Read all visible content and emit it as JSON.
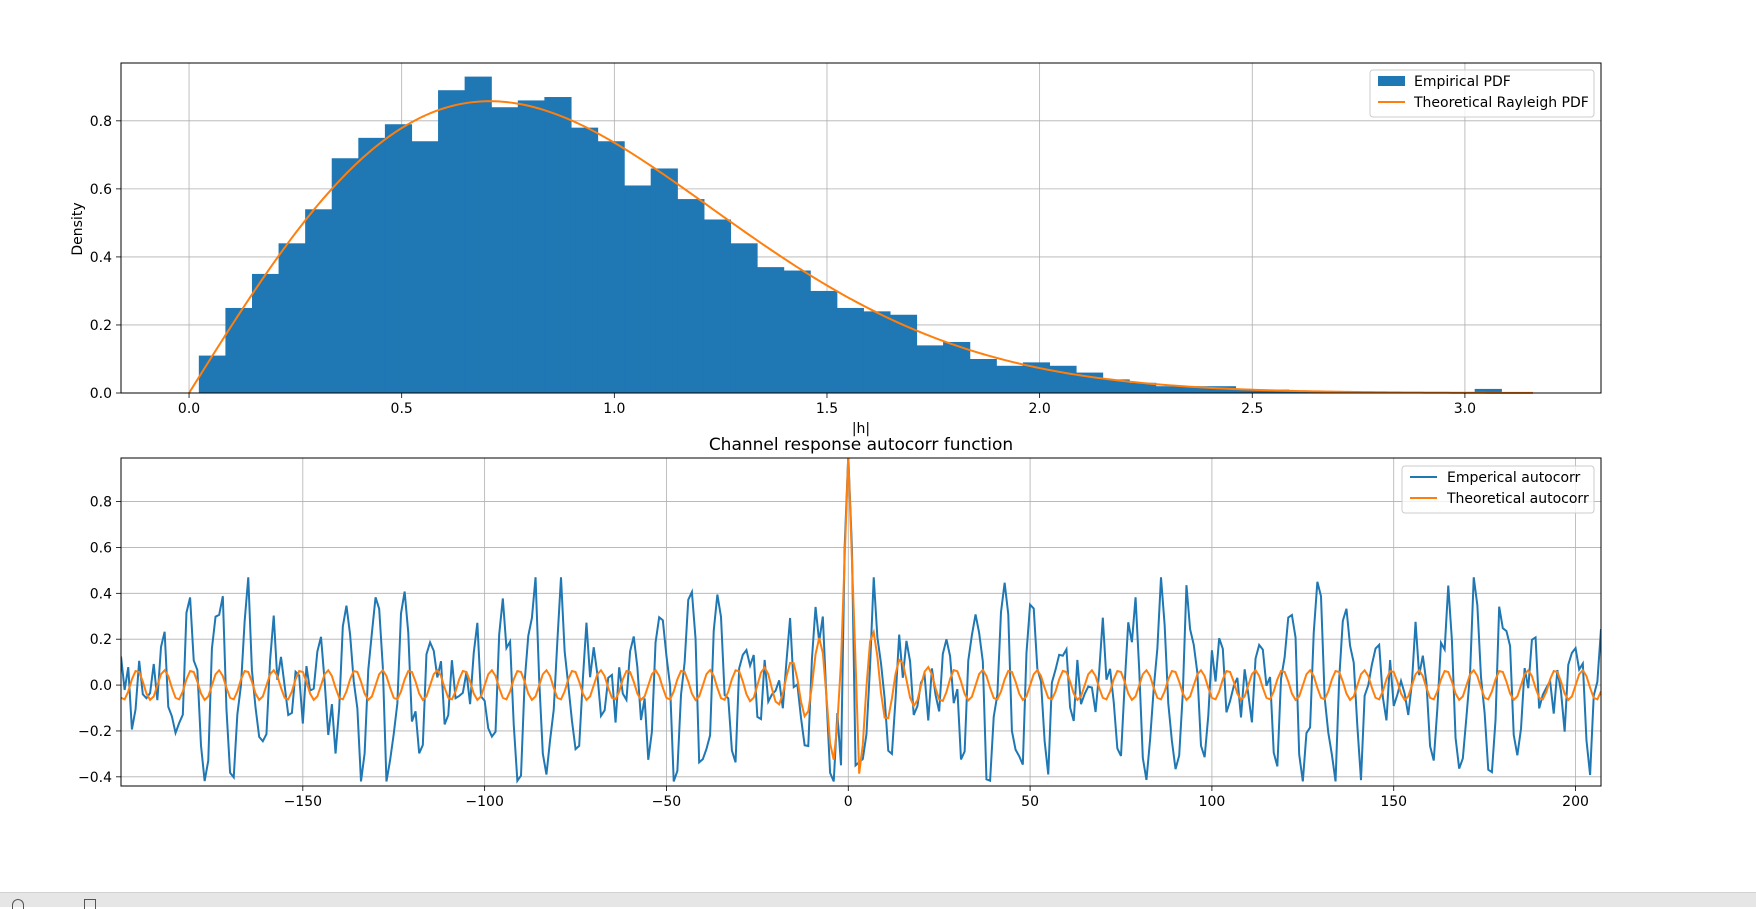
{
  "chart_data": [
    {
      "type": "bar",
      "title": "",
      "xlabel": "|h|",
      "ylabel": "Density",
      "xlim": [
        -0.16,
        3.32
      ],
      "ylim": [
        0,
        0.97
      ],
      "xticks": [
        0.0,
        0.5,
        1.0,
        1.5,
        2.0,
        2.5,
        3.0
      ],
      "xtick_labels": [
        "0.0",
        "0.5",
        "1.0",
        "1.5",
        "2.0",
        "2.5",
        "3.0"
      ],
      "yticks": [
        0.0,
        0.2,
        0.4,
        0.6,
        0.8
      ],
      "ytick_labels": [
        "0.0",
        "0.2",
        "0.4",
        "0.6",
        "0.8"
      ],
      "grid": true,
      "legend_position": "upper right",
      "bin_start": 0.023,
      "bin_width": 0.0625,
      "histogram": {
        "name": "Empirical PDF",
        "color": "#1f77b4",
        "values": [
          0.11,
          0.25,
          0.35,
          0.44,
          0.54,
          0.69,
          0.75,
          0.79,
          0.74,
          0.89,
          0.93,
          0.84,
          0.86,
          0.87,
          0.78,
          0.74,
          0.61,
          0.66,
          0.57,
          0.51,
          0.44,
          0.37,
          0.36,
          0.3,
          0.25,
          0.24,
          0.23,
          0.14,
          0.15,
          0.1,
          0.08,
          0.09,
          0.08,
          0.06,
          0.04,
          0.03,
          0.02,
          0.02,
          0.02,
          0.01,
          0.01,
          0.005,
          0.005,
          0.002,
          0.0,
          0.0,
          0.0,
          0.0,
          0.012,
          0.0,
          0.0
        ]
      },
      "curve": {
        "name": "Theoretical Rayleigh PDF",
        "color": "#ff7f0e",
        "formula": "2x*exp(-x^2)",
        "x_range": [
          0.0,
          3.16
        ]
      }
    },
    {
      "type": "line",
      "title": "Channel response autocorr function",
      "xlabel": "",
      "ylabel": "",
      "xlim": [
        -200,
        207
      ],
      "ylim": [
        -0.44,
        0.99
      ],
      "xticks": [
        -150,
        -100,
        -50,
        0,
        50,
        100,
        150,
        200
      ],
      "xtick_labels": [
        "−150",
        "−100",
        "−50",
        "0",
        "50",
        "100",
        "150",
        "200"
      ],
      "yticks": [
        -0.4,
        -0.2,
        0.0,
        0.2,
        0.4,
        0.6,
        0.8
      ],
      "ytick_labels": [
        "−0.4",
        "−0.2",
        "0.0",
        "0.2",
        "0.4",
        "0.6",
        "0.8"
      ],
      "grid": true,
      "legend_position": "upper right",
      "x_range": [
        -200,
        207
      ],
      "series": [
        {
          "name": "Emperical autocorr",
          "color": "#1f77b4",
          "peak": {
            "x": 0,
            "y": 1.0
          },
          "min_near_peak": {
            "x": 2,
            "y": -0.35
          },
          "sidelobe_amplitude": 0.42,
          "notable_peaks": [
            {
              "x": -186,
              "y": 0.47
            },
            {
              "x": -142,
              "y": 0.45
            },
            {
              "x": -50,
              "y": 0.39
            },
            {
              "x": 50,
              "y": 0.4
            },
            {
              "x": 140,
              "y": 0.45
            },
            {
              "x": 184,
              "y": 0.47
            }
          ],
          "notable_troughs": [
            {
              "x": -150,
              "y": -0.41
            },
            {
              "x": -102,
              "y": -0.4
            },
            {
              "x": 100,
              "y": -0.4
            },
            {
              "x": 148,
              "y": -0.41
            },
            {
              "x": 192,
              "y": -0.38
            }
          ]
        },
        {
          "name": "Theoretical autocorr",
          "color": "#ff7f0e",
          "peak": {
            "x": 0,
            "y": 1.0
          },
          "first_minimum": {
            "x": 4,
            "y": -0.4
          },
          "far_amplitude": 0.065,
          "oscillation_period": 7.5
        }
      ]
    }
  ]
}
